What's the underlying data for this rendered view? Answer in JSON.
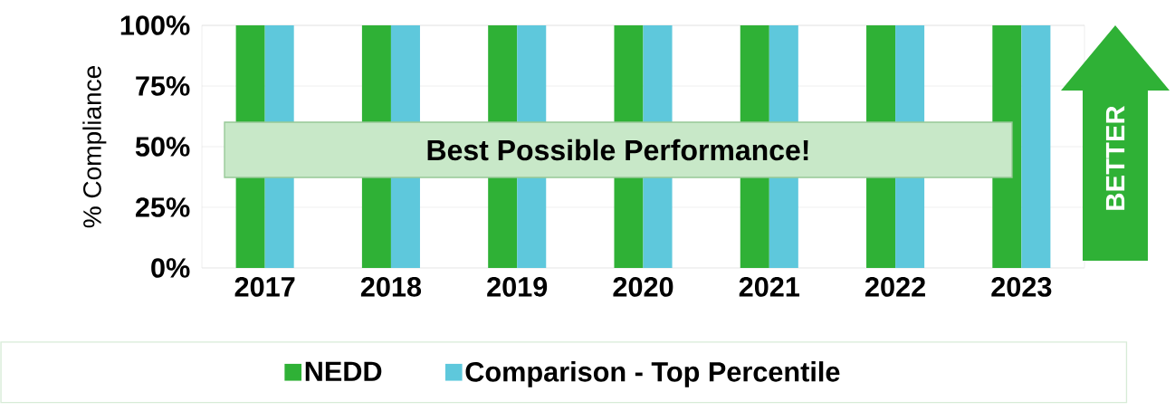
{
  "chart_data": {
    "type": "bar",
    "ylabel": "% Compliance",
    "categories": [
      "2017",
      "2018",
      "2019",
      "2020",
      "2021",
      "2022",
      "2023"
    ],
    "series": [
      {
        "name": "NEDD",
        "color": "#2fb136",
        "values": [
          100,
          100,
          100,
          100,
          100,
          100,
          100
        ]
      },
      {
        "name": "Comparison - Top Percentile",
        "color": "#5ec8dc",
        "values": [
          100,
          100,
          100,
          100,
          100,
          100,
          100
        ]
      }
    ],
    "ylim": [
      0,
      100
    ],
    "yticks": [
      {
        "value": 0,
        "label": "0%"
      },
      {
        "value": 25,
        "label": "25%"
      },
      {
        "value": 50,
        "label": "50%"
      },
      {
        "value": 75,
        "label": "75%"
      },
      {
        "value": 100,
        "label": "100%"
      }
    ],
    "grid": "y",
    "legend": "bottom",
    "annotations": [
      "Best Possible Performance!",
      "BETTER"
    ]
  }
}
